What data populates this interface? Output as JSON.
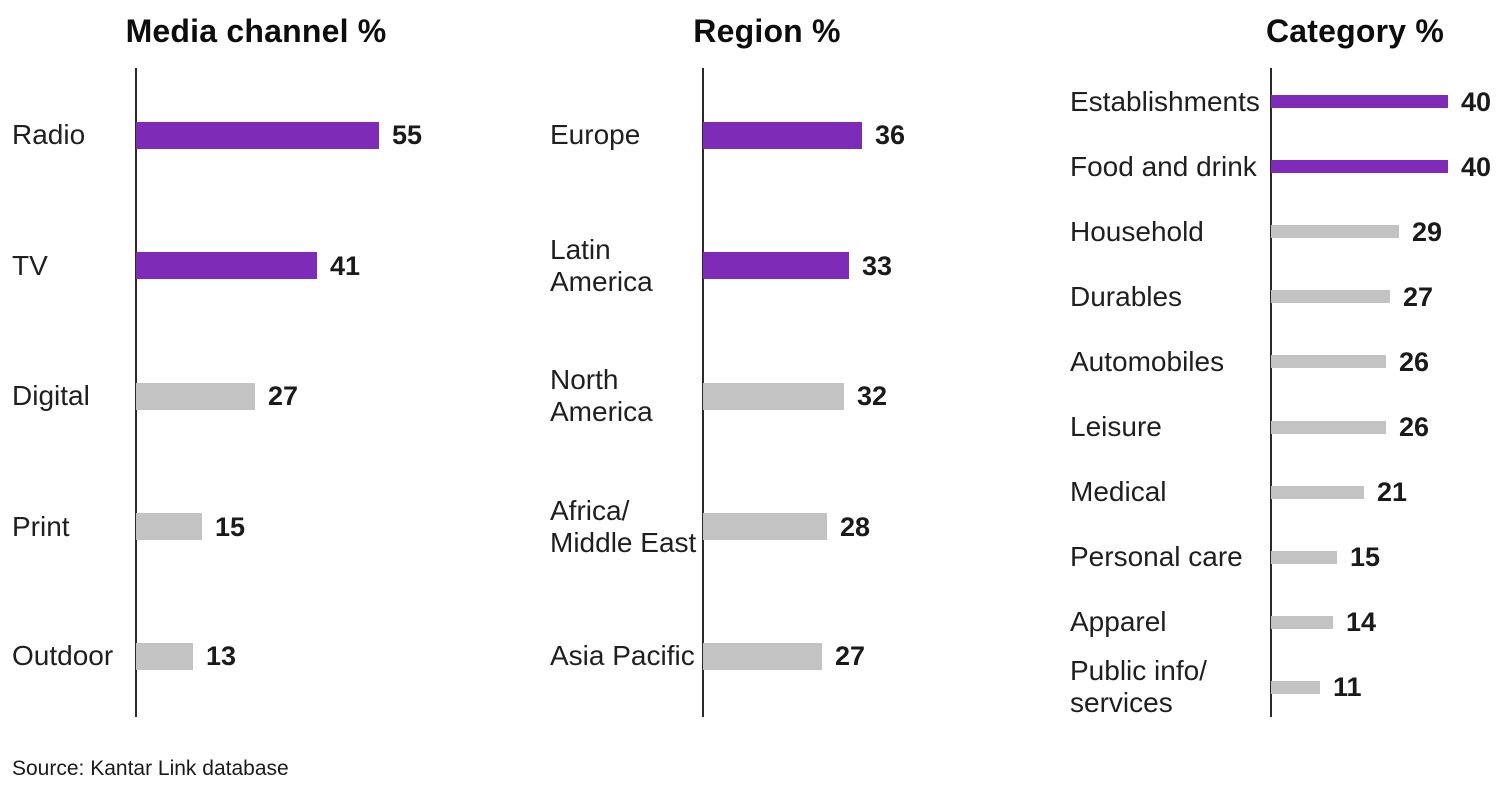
{
  "source": "Source: Kantar Link database",
  "colors": {
    "highlight": "#7E2BB8",
    "bar_gray": "#C3C3C3",
    "text": "#1F1F1F",
    "axis": "#2A2A2A"
  },
  "chart_data": [
    {
      "type": "bar",
      "orientation": "horizontal",
      "title": "Media channel %",
      "categories": [
        "Radio",
        "TV",
        "Digital",
        "Print",
        "Outdoor"
      ],
      "values": [
        55,
        41,
        27,
        15,
        13
      ],
      "highlighted": [
        true,
        true,
        false,
        false,
        false
      ],
      "xlabel": "",
      "ylabel": "",
      "xlim": [
        0,
        60
      ],
      "grid": false,
      "legend": false,
      "value_labels": true
    },
    {
      "type": "bar",
      "orientation": "horizontal",
      "title": "Region %",
      "categories": [
        "Europe",
        "Latin\nAmerica",
        "North\nAmerica",
        "Africa/\nMiddle East",
        "Asia Pacific"
      ],
      "values": [
        36,
        33,
        32,
        28,
        27
      ],
      "highlighted": [
        true,
        true,
        false,
        false,
        false
      ],
      "xlabel": "",
      "ylabel": "",
      "xlim": [
        0,
        60
      ],
      "grid": false,
      "legend": false,
      "value_labels": true
    },
    {
      "type": "bar",
      "orientation": "horizontal",
      "title": "Category %",
      "categories": [
        "Establishments",
        "Food and drink",
        "Household",
        "Durables",
        "Automobiles",
        "Leisure",
        "Medical",
        "Personal care",
        "Apparel",
        "Public info/\nservices"
      ],
      "values": [
        40,
        40,
        29,
        27,
        26,
        26,
        21,
        15,
        14,
        11
      ],
      "highlighted": [
        true,
        true,
        false,
        false,
        false,
        false,
        false,
        false,
        false,
        false
      ],
      "xlabel": "",
      "ylabel": "",
      "xlim": [
        0,
        60
      ],
      "grid": false,
      "legend": false,
      "value_labels": true
    }
  ]
}
